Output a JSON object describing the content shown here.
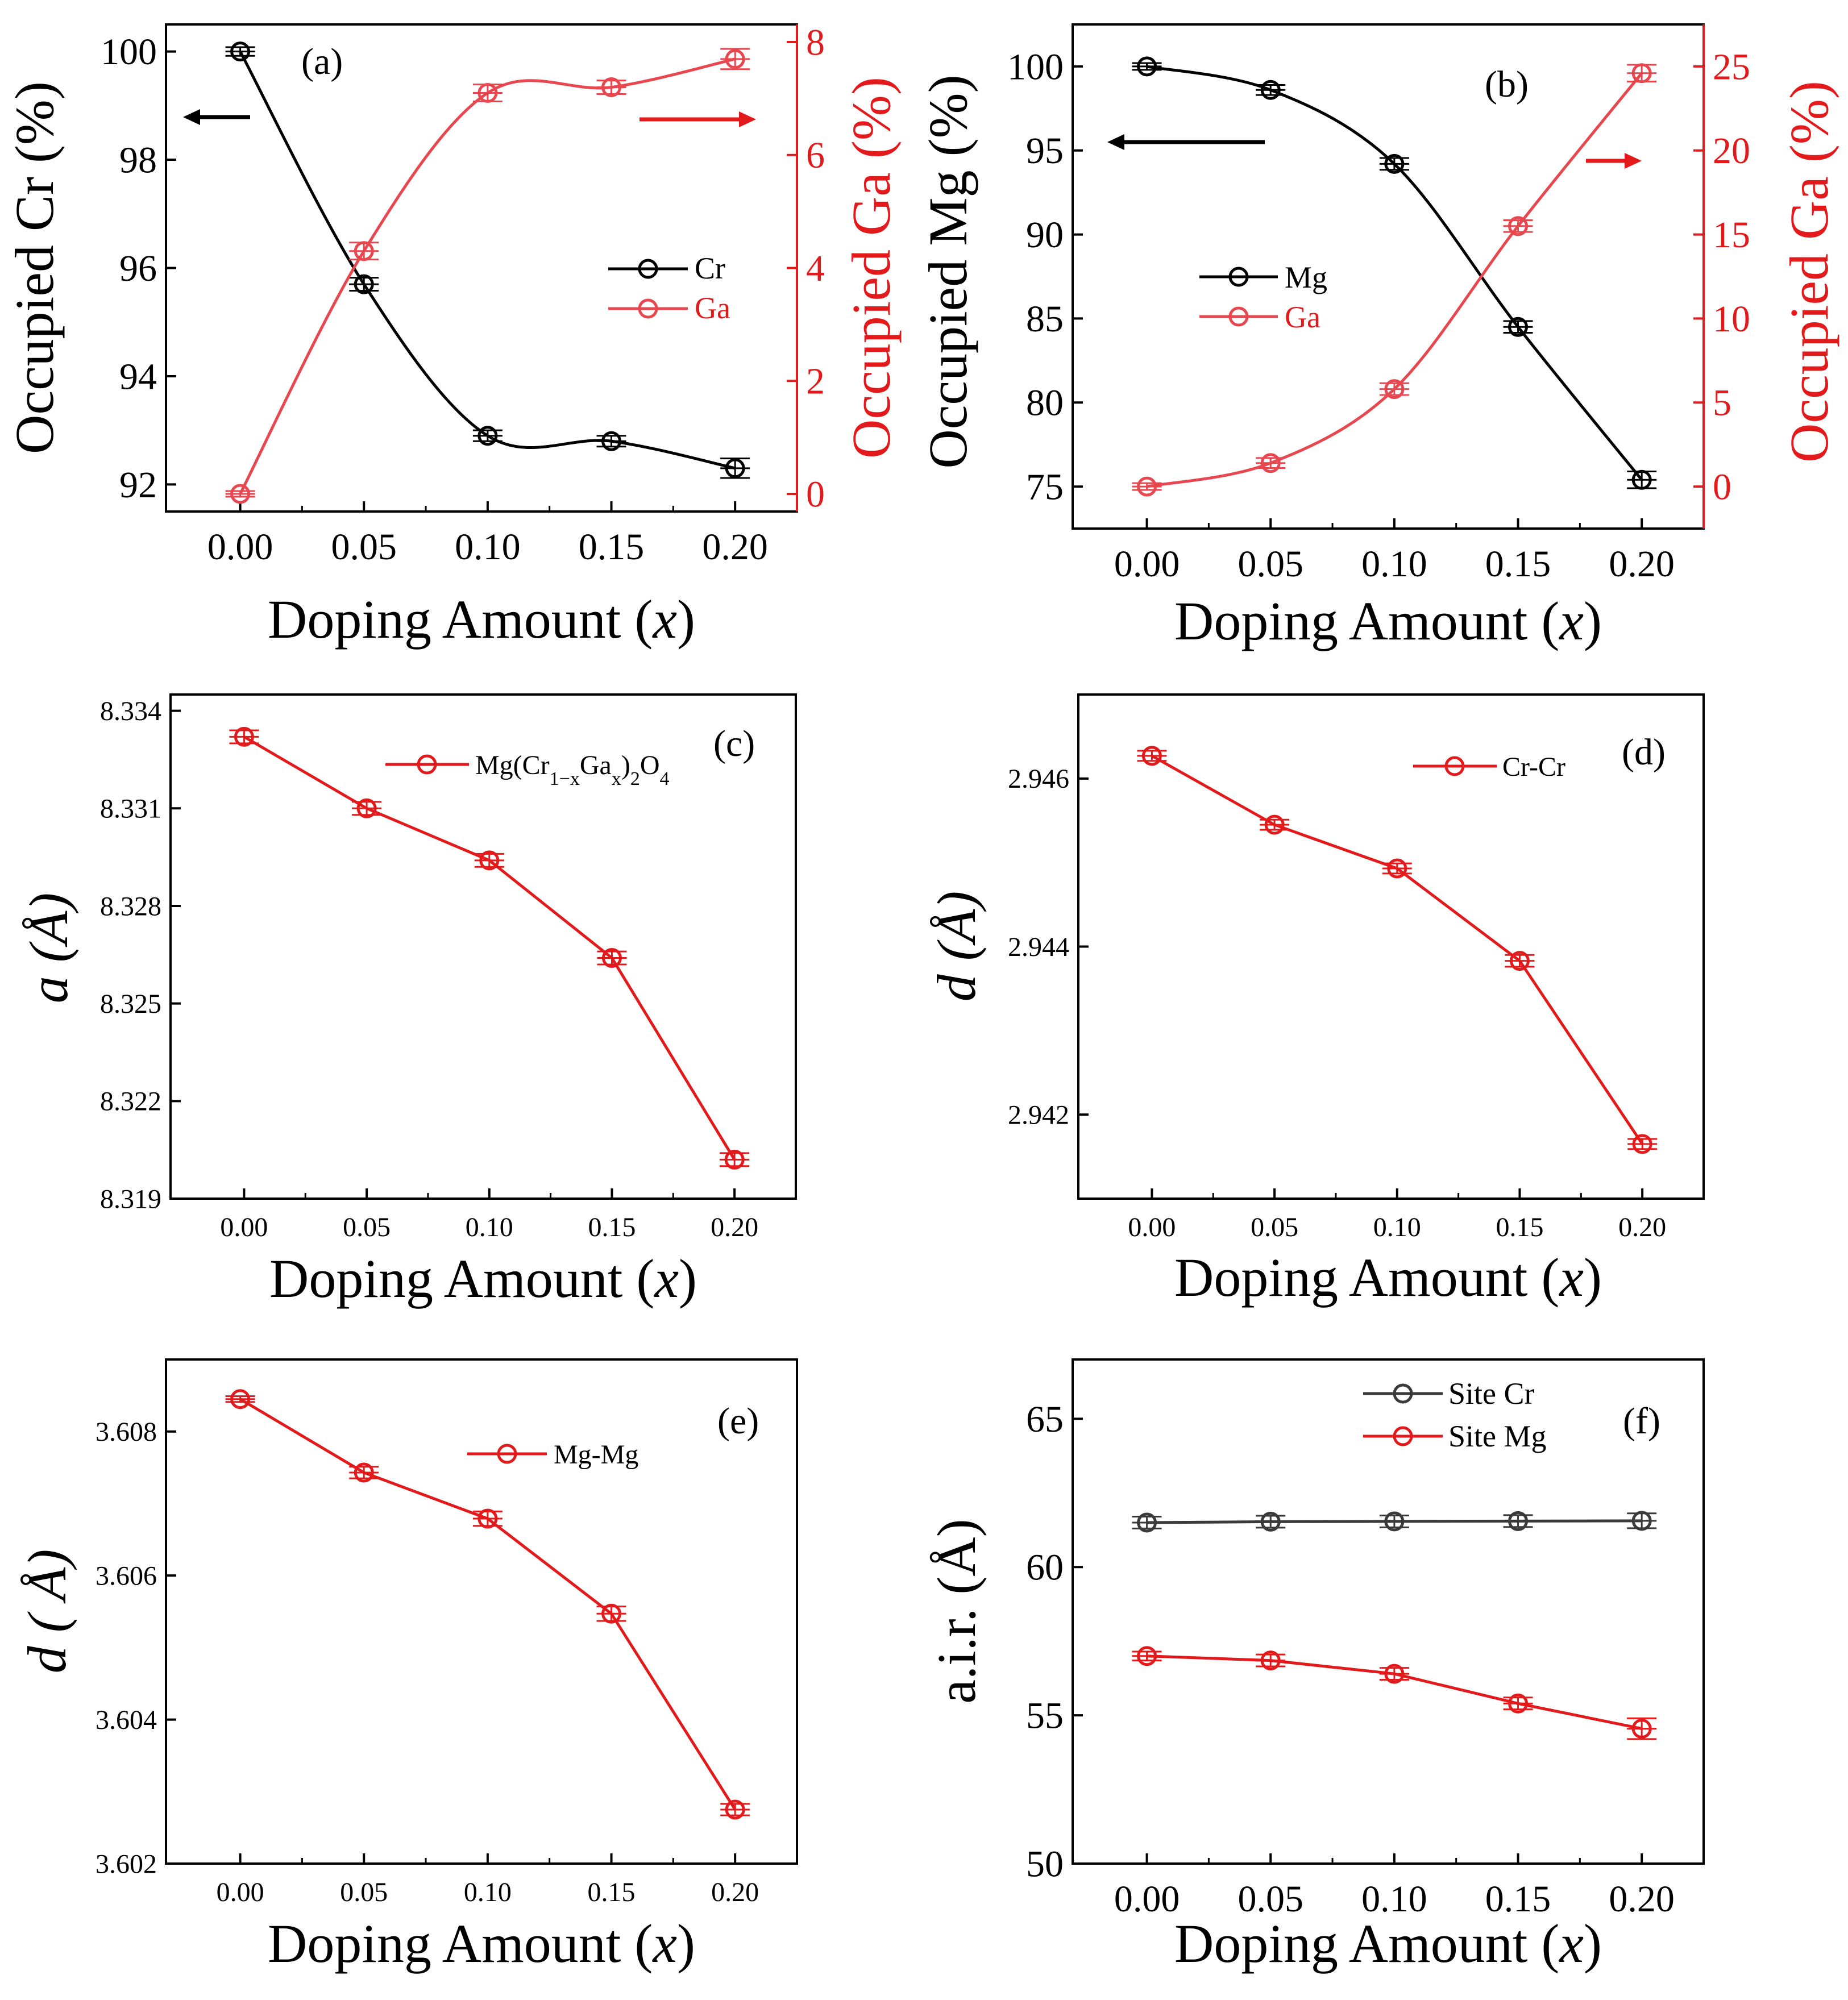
{
  "colors": {
    "black": "#000000",
    "red": "#e31a1c",
    "gray": "#3a3a3a",
    "red_light": "#e8474f"
  },
  "chart_data": [
    {
      "id": "a",
      "type": "line",
      "panel_label": "(a)",
      "xlabel": "Doping Amount (x)",
      "ylabel": "Occupied Cr (%)",
      "y2label": "Occupied Ga (%)",
      "x": [
        0.0,
        0.05,
        0.1,
        0.15,
        0.2
      ],
      "xticks": [
        "0.00",
        "0.05",
        "0.10",
        "0.15",
        "0.20"
      ],
      "xlim": [
        -0.03,
        0.225
      ],
      "ylim": [
        91.5,
        100.5
      ],
      "yticks": [
        "92",
        "94",
        "96",
        "98",
        "100"
      ],
      "y2lim": [
        -0.3125,
        8.3125
      ],
      "y2ticks": [
        "0",
        "2",
        "4",
        "6",
        "8"
      ],
      "series": [
        {
          "name": "Cr",
          "values": [
            100.0,
            95.7,
            92.9,
            92.8,
            92.3
          ],
          "errors": [
            0.08,
            0.12,
            0.1,
            0.1,
            0.18
          ],
          "axis": "left",
          "color": "#000000"
        },
        {
          "name": "Ga",
          "values": [
            0.0,
            4.3,
            7.1,
            7.2,
            7.7
          ],
          "errors": [
            0.05,
            0.15,
            0.15,
            0.12,
            0.18
          ],
          "axis": "right",
          "color": "#e8474f"
        }
      ],
      "legend": "center-right"
    },
    {
      "id": "b",
      "type": "line",
      "panel_label": "(b)",
      "xlabel": "Doping Amount (x)",
      "ylabel": "Occupied Mg (%)",
      "y2label": "Occupied Ga (%)",
      "x": [
        0.0,
        0.05,
        0.1,
        0.15,
        0.2
      ],
      "xticks": [
        "0.00",
        "0.05",
        "0.10",
        "0.15",
        "0.20"
      ],
      "xlim": [
        -0.03,
        0.225
      ],
      "ylim": [
        72.5,
        102.5
      ],
      "yticks": [
        "75",
        "80",
        "85",
        "90",
        "95",
        "100"
      ],
      "y2lim": [
        -2.5,
        27.5
      ],
      "y2ticks": [
        "0",
        "5",
        "10",
        "15",
        "20",
        "25"
      ],
      "series": [
        {
          "name": "Mg",
          "values": [
            100.0,
            98.6,
            94.2,
            84.5,
            75.4
          ],
          "errors": [
            0.2,
            0.3,
            0.35,
            0.35,
            0.5
          ],
          "axis": "left",
          "color": "#000000"
        },
        {
          "name": "Ga",
          "values": [
            0.0,
            1.4,
            5.8,
            15.5,
            24.6
          ],
          "errors": [
            0.2,
            0.3,
            0.35,
            0.35,
            0.5
          ],
          "axis": "right",
          "color": "#e8474f"
        }
      ],
      "legend": "center-left"
    },
    {
      "id": "c",
      "type": "line",
      "panel_label": "(c)",
      "xlabel": "Doping Amount (x)",
      "ylabel": "a (Å)",
      "x": [
        0.0,
        0.05,
        0.1,
        0.15,
        0.2
      ],
      "xticks": [
        "0.00",
        "0.05",
        "0.10",
        "0.15",
        "0.20"
      ],
      "xlim": [
        -0.03,
        0.225
      ],
      "ylim": [
        8.319,
        8.3345
      ],
      "yticks": [
        "8.319",
        "8.322",
        "8.325",
        "8.328",
        "8.331",
        "8.334"
      ],
      "series": [
        {
          "name": "Mg(Cr1-xGax)2O4",
          "values": [
            8.3332,
            8.331,
            8.3294,
            8.3264,
            8.3202
          ],
          "errors": [
            0.0002,
            0.0002,
            0.0002,
            0.0002,
            0.0002
          ],
          "color": "#e31a1c"
        }
      ],
      "legend": "top-right"
    },
    {
      "id": "d",
      "type": "line",
      "panel_label": "(d)",
      "xlabel": "Doping Amount (x)",
      "ylabel": "d (Å)",
      "x": [
        0.0,
        0.05,
        0.1,
        0.15,
        0.2
      ],
      "xticks": [
        "0.00",
        "0.05",
        "0.10",
        "0.15",
        "0.20"
      ],
      "xlim": [
        -0.03,
        0.225
      ],
      "ylim": [
        2.941,
        2.947
      ],
      "yticks": [
        "2.942",
        "2.944",
        "2.946"
      ],
      "series": [
        {
          "name": "Cr-Cr",
          "values": [
            2.94627,
            2.94545,
            2.94493,
            2.94383,
            2.94165
          ],
          "errors": [
            6e-05,
            6e-05,
            6e-05,
            7e-05,
            6e-05
          ],
          "color": "#e31a1c"
        }
      ],
      "legend": "top-right"
    },
    {
      "id": "e",
      "type": "line",
      "panel_label": "(e)",
      "xlabel": "Doping Amount (x)",
      "ylabel": "d ( Å)",
      "x": [
        0.0,
        0.05,
        0.1,
        0.15,
        0.2
      ],
      "xticks": [
        "0.00",
        "0.05",
        "0.10",
        "0.15",
        "0.20"
      ],
      "xlim": [
        -0.03,
        0.225
      ],
      "ylim": [
        3.602,
        3.609
      ],
      "yticks": [
        "3.602",
        "3.604",
        "3.606",
        "3.608"
      ],
      "series": [
        {
          "name": "Mg-Mg",
          "values": [
            3.60845,
            3.60743,
            3.60679,
            3.60547,
            3.60275
          ],
          "errors": [
            4e-05,
            8e-05,
            0.0001,
            0.0001,
            8e-05
          ],
          "color": "#e31a1c"
        }
      ],
      "legend": "top-right"
    },
    {
      "id": "f",
      "type": "line",
      "panel_label": "(f)",
      "xlabel": "Doping Amount (x)",
      "ylabel": "a.i.r. (Å)",
      "x": [
        0.0,
        0.05,
        0.1,
        0.15,
        0.2
      ],
      "xticks": [
        "0.00",
        "0.05",
        "0.10",
        "0.15",
        "0.20"
      ],
      "xlim": [
        -0.03,
        0.225
      ],
      "ylim": [
        50,
        67
      ],
      "yticks": [
        "50",
        "55",
        "60",
        "65"
      ],
      "series": [
        {
          "name": "Site Cr",
          "values": [
            61.5,
            61.53,
            61.54,
            61.55,
            61.56
          ],
          "errors": [
            0.2,
            0.2,
            0.2,
            0.2,
            0.25
          ],
          "color": "#3a3a3a"
        },
        {
          "name": "Site Mg",
          "values": [
            57.0,
            56.85,
            56.4,
            55.4,
            54.55
          ],
          "errors": [
            0.15,
            0.2,
            0.2,
            0.2,
            0.35
          ],
          "color": "#e31a1c"
        }
      ],
      "legend": "top-center"
    }
  ]
}
